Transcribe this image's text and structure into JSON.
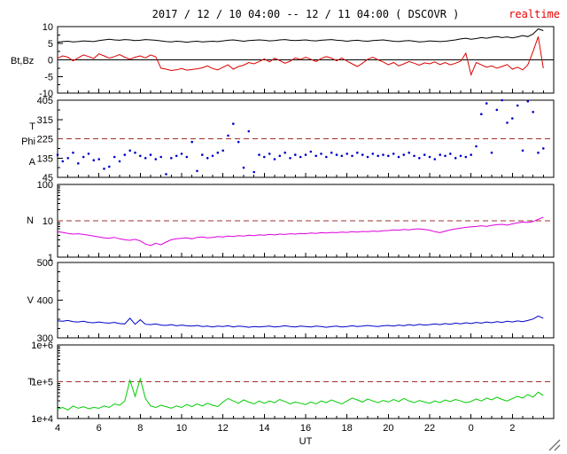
{
  "header": {
    "title": "2017 / 12 / 10  04:00 -- 12 / 11  04:00 ( DSCOVR )",
    "title_color": "#000099",
    "status": "realtime",
    "status_color": "#e80000"
  },
  "xaxis": {
    "label": "UT",
    "t_start": 4,
    "t_end": 28,
    "major_ticks": [
      4,
      6,
      8,
      10,
      12,
      14,
      16,
      18,
      20,
      22,
      24,
      26
    ],
    "tick_labels": [
      "4",
      "6",
      "8",
      "10",
      "12",
      "14",
      "16",
      "18",
      "20",
      "22",
      "0",
      "2"
    ]
  },
  "chart_data": {
    "type": "line",
    "title": "2017 / 12 / 10  04:00 -- 12 / 11  04:00 ( DSCOVR )",
    "t_start": 4,
    "t_step": 0.25,
    "threshold_color": "#a03030",
    "panels": [
      {
        "id": "btbz",
        "left_labels": [
          "Bt,Bz"
        ],
        "ymin": -10,
        "ymax": 10,
        "scale": "linear",
        "yticks": [
          10,
          5,
          0,
          -5,
          -10
        ],
        "zero_line": true,
        "series": [
          {
            "name": "Bt",
            "color": "#000000",
            "values": [
              5.3,
              5.5,
              5.6,
              5.4,
              5.5,
              5.7,
              5.6,
              5.5,
              5.8,
              6.0,
              6.2,
              6.0,
              5.9,
              6.1,
              6.0,
              5.8,
              5.9,
              6.1,
              6.0,
              5.9,
              5.7,
              5.5,
              5.4,
              5.6,
              5.5,
              5.3,
              5.5,
              5.6,
              5.4,
              5.5,
              5.6,
              5.5,
              5.7,
              5.9,
              6.0,
              5.8,
              5.6,
              5.8,
              5.9,
              6.0,
              5.9,
              5.7,
              5.8,
              6.0,
              6.1,
              5.9,
              5.8,
              5.9,
              6.0,
              5.8,
              5.7,
              5.9,
              6.0,
              6.1,
              5.9,
              5.8,
              5.6,
              5.8,
              5.9,
              5.7,
              5.6,
              5.8,
              5.9,
              6.0,
              5.8,
              5.6,
              5.5,
              5.7,
              5.8,
              5.6,
              5.4,
              5.5,
              5.7,
              5.6,
              5.5,
              5.6,
              5.8,
              6.0,
              6.3,
              6.5,
              6.2,
              6.4,
              6.7,
              6.5,
              6.8,
              7.0,
              6.7,
              6.9,
              6.6,
              6.9,
              7.3,
              7.0,
              7.8,
              9.3,
              8.8
            ]
          },
          {
            "name": "Bz",
            "color": "#dd0000",
            "values": [
              0.5,
              1.2,
              0.8,
              -0.3,
              0.6,
              1.5,
              1.0,
              0.4,
              1.8,
              1.2,
              0.5,
              1.0,
              1.6,
              0.8,
              0.2,
              0.8,
              1.2,
              0.6,
              1.5,
              0.9,
              -2.5,
              -2.8,
              -3.2,
              -3.0,
              -2.6,
              -3.1,
              -2.9,
              -2.7,
              -2.4,
              -1.8,
              -2.6,
              -3.0,
              -2.2,
              -1.5,
              -2.8,
              -2.0,
              -1.6,
              -0.8,
              -1.2,
              -0.5,
              0.3,
              -0.6,
              0.5,
              -0.2,
              -1.0,
              -0.4,
              0.6,
              0.1,
              0.8,
              0.2,
              -0.5,
              0.4,
              1.0,
              0.5,
              -0.3,
              0.6,
              -0.4,
              -1.2,
              -2.0,
              -1.0,
              0.2,
              0.8,
              0.0,
              -0.6,
              -1.5,
              -0.8,
              -1.8,
              -1.2,
              -0.5,
              -1.0,
              -1.6,
              -0.9,
              -1.2,
              -0.6,
              -1.4,
              -0.8,
              -1.5,
              -1.0,
              -0.4,
              2.0,
              -4.5,
              -0.8,
              -1.5,
              -2.2,
              -1.8,
              -2.5,
              -2.0,
              -1.4,
              -2.8,
              -2.2,
              -3.0,
              -1.5,
              2.5,
              7.0,
              -2.5
            ]
          }
        ]
      },
      {
        "id": "phi",
        "left_labels": [
          "T",
          "Phi",
          "A"
        ],
        "ymin": 45,
        "ymax": 405,
        "scale": "linear",
        "yticks": [
          405,
          315,
          225,
          135,
          45
        ],
        "threshold": 225,
        "series": [
          {
            "name": "Phi",
            "color": "#0000cc",
            "style": "dots",
            "values": [
              150,
              120,
              135,
              160,
              110,
              140,
              155,
              125,
              130,
              85,
              95,
              140,
              120,
              150,
              170,
              160,
              145,
              135,
              150,
              130,
              140,
              60,
              135,
              145,
              155,
              140,
              210,
              75,
              150,
              135,
              145,
              160,
              170,
              240,
              295,
              210,
              90,
              260,
              70,
              150,
              140,
              155,
              130,
              145,
              160,
              135,
              150,
              140,
              150,
              165,
              145,
              155,
              140,
              160,
              150,
              145,
              155,
              145,
              160,
              150,
              140,
              155,
              145,
              150,
              145,
              155,
              140,
              150,
              160,
              145,
              135,
              150,
              140,
              130,
              150,
              145,
              155,
              135,
              145,
              140,
              150,
              190,
              340,
              390,
              160,
              360,
              405,
              300,
              320,
              380,
              170,
              400,
              350,
              160,
              180
            ]
          }
        ]
      },
      {
        "id": "density",
        "left_labels": [
          "N"
        ],
        "ymin": 1,
        "ymax": 100,
        "scale": "log",
        "yticks": [
          100,
          10,
          1
        ],
        "threshold": 10,
        "series": [
          {
            "name": "N",
            "color": "#dd00dd",
            "values": [
              5.0,
              4.8,
              4.5,
              4.3,
              4.4,
              4.2,
              4.0,
              3.8,
              3.6,
              3.4,
              3.3,
              3.5,
              3.2,
              3.0,
              2.9,
              3.1,
              2.8,
              2.3,
              2.1,
              2.4,
              2.2,
              2.6,
              3.0,
              3.2,
              3.3,
              3.4,
              3.2,
              3.5,
              3.6,
              3.4,
              3.5,
              3.7,
              3.6,
              3.8,
              3.7,
              3.9,
              3.8,
              4.0,
              3.9,
              4.1,
              4.0,
              4.2,
              4.1,
              4.3,
              4.2,
              4.4,
              4.3,
              4.5,
              4.4,
              4.6,
              4.5,
              4.7,
              4.6,
              4.8,
              4.7,
              4.9,
              4.8,
              5.0,
              4.9,
              5.1,
              5.0,
              5.2,
              5.1,
              5.3,
              5.4,
              5.6,
              5.5,
              5.8,
              5.6,
              5.9,
              6.0,
              5.8,
              5.5,
              5.0,
              4.7,
              5.2,
              5.6,
              6.0,
              6.3,
              6.6,
              6.8,
              7.0,
              7.3,
              7.0,
              7.5,
              7.8,
              8.0,
              7.6,
              8.2,
              8.8,
              9.2,
              9.0,
              9.5,
              11.0,
              12.5
            ]
          }
        ]
      },
      {
        "id": "velocity",
        "left_labels": [
          "V"
        ],
        "ymin": 300,
        "ymax": 500,
        "scale": "linear",
        "yticks": [
          500,
          400,
          300
        ],
        "series": [
          {
            "name": "V",
            "color": "#0000cc",
            "values": [
              345,
              344,
              346,
              343,
              342,
              344,
              341,
              340,
              342,
              340,
              339,
              341,
              338,
              337,
              352,
              336,
              348,
              336,
              335,
              337,
              334,
              333,
              335,
              332,
              334,
              332,
              331,
              333,
              330,
              331,
              329,
              331,
              330,
              332,
              329,
              331,
              330,
              328,
              330,
              329,
              330,
              331,
              329,
              330,
              332,
              330,
              329,
              331,
              330,
              329,
              331,
              330,
              328,
              330,
              331,
              329,
              330,
              332,
              330,
              331,
              333,
              331,
              330,
              332,
              333,
              331,
              334,
              332,
              335,
              333,
              336,
              334,
              335,
              337,
              335,
              338,
              336,
              339,
              337,
              340,
              338,
              341,
              339,
              342,
              340,
              343,
              341,
              344,
              342,
              345,
              343,
              346,
              350,
              358,
              352
            ]
          }
        ]
      },
      {
        "id": "temperature",
        "left_labels": [
          "T"
        ],
        "ymin": 10000,
        "ymax": 1000000,
        "scale": "log",
        "yticks": [
          1000000,
          100000,
          10000
        ],
        "ytick_labels": [
          "1e+6",
          "1e+5",
          "1e+4"
        ],
        "threshold": 100000,
        "series": [
          {
            "name": "T",
            "color": "#00cc00",
            "values": [
              18000,
              20000,
              17000,
              22000,
              19000,
              21000,
              18500,
              20000,
              19000,
              22000,
              20000,
              25000,
              23000,
              30000,
              110000,
              40000,
              120000,
              35000,
              22000,
              20000,
              23000,
              21000,
              19000,
              22000,
              20000,
              24000,
              21000,
              25000,
              22000,
              26000,
              23000,
              21000,
              28000,
              35000,
              30000,
              26000,
              32000,
              28000,
              25000,
              30000,
              26000,
              30000,
              27000,
              33000,
              29000,
              25000,
              28000,
              26000,
              24000,
              28000,
              25000,
              30000,
              27000,
              32000,
              28000,
              25000,
              30000,
              36000,
              32000,
              28000,
              34000,
              30000,
              27000,
              31000,
              28000,
              33000,
              29000,
              35000,
              30000,
              27000,
              31000,
              28000,
              26000,
              30000,
              27000,
              32000,
              29000,
              33000,
              30000,
              27000,
              29000,
              34000,
              30000,
              36000,
              32000,
              38000,
              33000,
              30000,
              35000,
              40000,
              36000,
              45000,
              38000,
              52000,
              42000
            ]
          }
        ]
      }
    ]
  }
}
